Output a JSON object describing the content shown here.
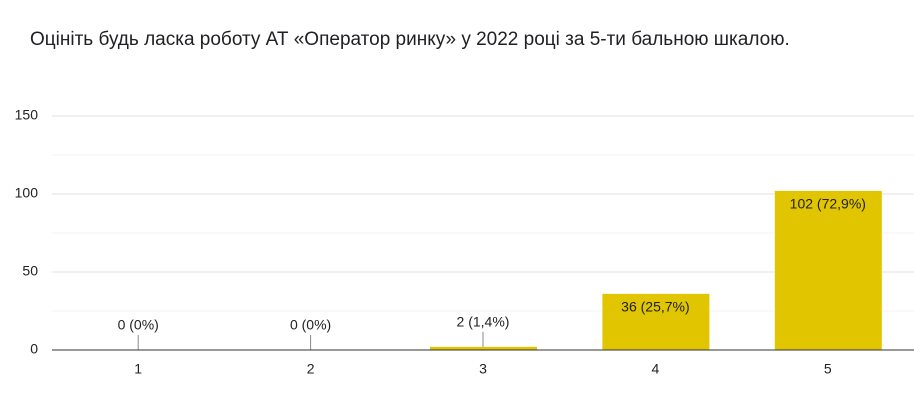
{
  "chart_data": {
    "type": "bar",
    "title": "Оцініть будь ласка роботу АТ «Оператор ринку» у 2022 році за 5-ти бальною шкалою.",
    "categories": [
      "1",
      "2",
      "3",
      "4",
      "5"
    ],
    "values": [
      0,
      0,
      2,
      36,
      102
    ],
    "value_labels": [
      "0 (0%)",
      "0 (0%)",
      "2 (1,4%)",
      "36 (25,7%)",
      "102 (72,9%)"
    ],
    "color": "#e0c500",
    "ylim": [
      0,
      150
    ],
    "yticks": [
      0,
      50,
      100,
      150
    ],
    "minor_yticks": [
      25,
      75,
      125
    ],
    "grid": true
  }
}
